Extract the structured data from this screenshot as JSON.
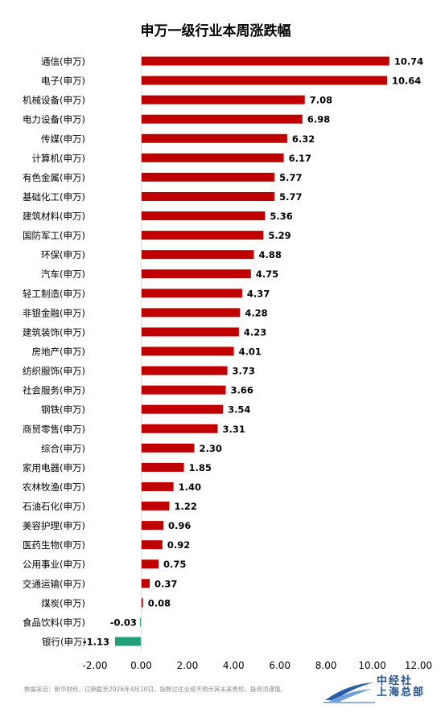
{
  "chart_data": {
    "type": "bar",
    "orientation": "horizontal",
    "title": "申万一级行业本周涨跌幅",
    "categories": [
      "通信(申万)",
      "电子(申万)",
      "机械设备(申万)",
      "电力设备(申万)",
      "传媒(申万)",
      "计算机(申万)",
      "有色金属(申万)",
      "基础化工(申万)",
      "建筑材料(申万)",
      "国防军工(申万)",
      "环保(申万)",
      "汽车(申万)",
      "轻工制造(申万)",
      "非银金融(申万)",
      "建筑装饰(申万)",
      "房地产(申万)",
      "纺织服饰(申万)",
      "社会服务(申万)",
      "钢铁(申万)",
      "商贸零售(申万)",
      "综合(申万)",
      "家用电器(申万)",
      "农林牧渔(申万)",
      "石油石化(申万)",
      "美容护理(申万)",
      "医药生物(申万)",
      "公用事业(申万)",
      "交通运输(申万)",
      "煤炭(申万)",
      "食品饮料(申万)",
      "银行(申万)"
    ],
    "values": [
      10.74,
      10.64,
      7.08,
      6.98,
      6.32,
      6.17,
      5.77,
      5.77,
      5.36,
      5.29,
      4.88,
      4.75,
      4.37,
      4.28,
      4.23,
      4.01,
      3.73,
      3.66,
      3.54,
      3.31,
      2.3,
      1.85,
      1.4,
      1.22,
      0.96,
      0.92,
      0.75,
      0.37,
      0.08,
      -0.03,
      -1.13
    ],
    "value_labels": [
      "10.74",
      "10.64",
      "7.08",
      "6.98",
      "6.32",
      "6.17",
      "5.77",
      "5.77",
      "5.36",
      "5.29",
      "4.88",
      "4.75",
      "4.37",
      "4.28",
      "4.23",
      "4.01",
      "3.73",
      "3.66",
      "3.54",
      "3.31",
      "2.30",
      "1.85",
      "1.40",
      "1.22",
      "0.96",
      "0.92",
      "0.75",
      "0.37",
      "0.08",
      "-0.03",
      "-1.13"
    ],
    "xlim": [
      -2,
      12
    ],
    "xticks": [
      -2,
      0,
      2,
      4,
      6,
      8,
      10,
      12
    ],
    "xtick_labels": [
      "-2.00",
      "0.00",
      "2.00",
      "4.00",
      "6.00",
      "8.00",
      "10.00",
      "12.00"
    ],
    "xlabel": "",
    "ylabel": "",
    "grid": false,
    "legend": "none",
    "colors": {
      "positive": "#c00000",
      "negative": "#1fa07a"
    }
  },
  "footer": {
    "note": "数据来自：新华财经，日期截至2026年4月10日。指数过往业绩不预示其未来表现，投资须谨慎。",
    "logo_line1": "中经社",
    "logo_line2": "上海总部"
  }
}
